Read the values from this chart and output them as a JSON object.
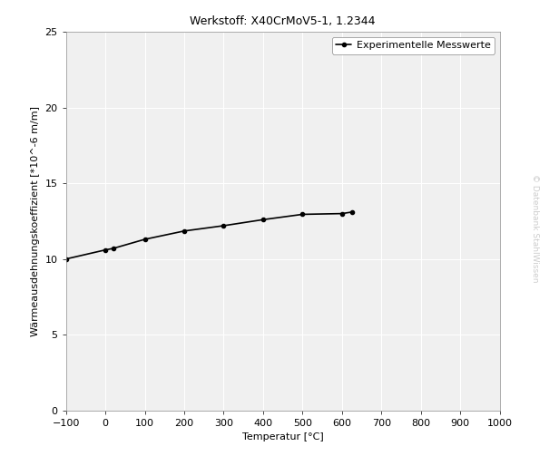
{
  "title": "Werkstoff: X40CrMoV5-1, 1.2344",
  "xlabel": "Temperatur [°C]",
  "ylabel": "Wärmeausdehnungskoeffizient [*10^-6 m/m]",
  "legend_label": "Experimentelle Messwerte",
  "watermark": "© Datenbank StahlWissen",
  "x_data": [
    -100,
    0,
    20,
    100,
    200,
    300,
    400,
    500,
    600,
    625
  ],
  "y_data": [
    10.0,
    10.6,
    10.7,
    11.3,
    11.85,
    12.2,
    12.6,
    12.95,
    13.0,
    13.1
  ],
  "xlim": [
    -100,
    1000
  ],
  "ylim": [
    0,
    25
  ],
  "xticks": [
    -100,
    0,
    100,
    200,
    300,
    400,
    500,
    600,
    700,
    800,
    900,
    1000
  ],
  "yticks": [
    0,
    5,
    10,
    15,
    20,
    25
  ],
  "line_color": "#000000",
  "marker": ".",
  "marker_size": 6,
  "line_width": 1.2,
  "background_color": "#ffffff",
  "plot_bg_color": "#f0f0f0",
  "grid_color": "#ffffff",
  "title_fontsize": 9,
  "label_fontsize": 8,
  "tick_fontsize": 8,
  "legend_fontsize": 8,
  "watermark_color": "#cccccc",
  "watermark_fontsize": 6.5
}
